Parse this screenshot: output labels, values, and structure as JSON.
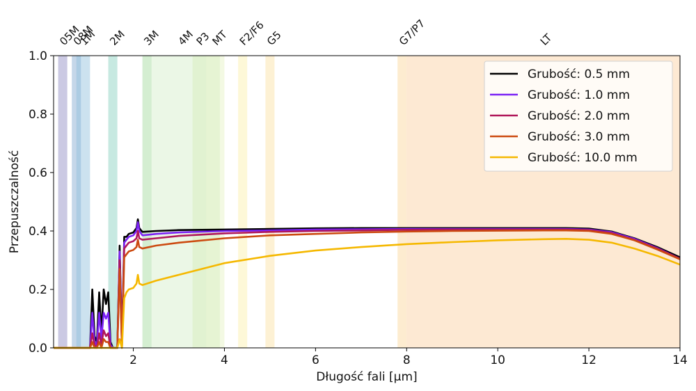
{
  "chart_data": {
    "type": "line",
    "title": "",
    "xlabel": "Długość fali [µm]",
    "ylabel": "Przepuszczalność",
    "xlim": [
      0.25,
      14
    ],
    "ylim": [
      0,
      1
    ],
    "xticks": [
      2,
      4,
      6,
      8,
      10,
      12,
      14
    ],
    "xtick_labels": [
      "2",
      "4",
      "6",
      "8",
      "10",
      "12",
      "14"
    ],
    "yticks": [
      0,
      0.2,
      0.4,
      0.6,
      0.8,
      1.0
    ],
    "ytick_labels": [
      "0.0",
      "0.2",
      "0.4",
      "0.6",
      "0.8",
      "1.0"
    ],
    "grid": false,
    "legend_position": "top-right",
    "bands": [
      {
        "label": "05M",
        "x": [
          0.35,
          0.55
        ],
        "color": "#8c87c0",
        "opacity": 0.45
      },
      {
        "label": "08M",
        "x": [
          0.65,
          0.85
        ],
        "color": "#7ea7cf",
        "opacity": 0.45
      },
      {
        "label": "1M",
        "x": [
          0.75,
          1.05
        ],
        "color": "#8fbedc",
        "opacity": 0.45
      },
      {
        "label": "2M",
        "x": [
          1.45,
          1.65
        ],
        "color": "#74c8b4",
        "opacity": 0.4
      },
      {
        "label": "3M",
        "x": [
          2.2,
          2.4
        ],
        "color": "#a8dcae",
        "opacity": 0.4
      },
      {
        "label": "4M",
        "x": [
          2.2,
          3.9
        ],
        "color": "#c6e8b8",
        "opacity": 0.35
      },
      {
        "label": "P3",
        "x": [
          3.3,
          3.6
        ],
        "color": "#cfe9a8",
        "opacity": 0.35
      },
      {
        "label": "MT",
        "x": [
          3.6,
          4.0
        ],
        "color": "#dcefb0",
        "opacity": 0.35
      },
      {
        "label": "F2/F6",
        "x": [
          4.3,
          4.5
        ],
        "color": "#fbf3b8",
        "opacity": 0.55
      },
      {
        "label": "G5",
        "x": [
          4.9,
          5.1
        ],
        "color": "#fbe6b0",
        "opacity": 0.55
      },
      {
        "label": "G7/P7",
        "x": [
          7.8,
          8.0
        ],
        "color": "#fbdcaa",
        "opacity": 0.55
      },
      {
        "label": "LT",
        "x": [
          8.0,
          14.0
        ],
        "color": "#fbd3a8",
        "opacity": 0.5
      }
    ],
    "x": [
      0.25,
      1.05,
      1.1,
      1.15,
      1.2,
      1.25,
      1.3,
      1.35,
      1.4,
      1.45,
      1.5,
      1.55,
      1.6,
      1.65,
      1.7,
      1.75,
      1.8,
      1.85,
      1.9,
      2.0,
      2.07,
      2.1,
      2.13,
      2.2,
      2.5,
      3,
      4,
      5,
      6,
      7,
      8,
      9,
      10,
      11,
      11.5,
      12,
      12.5,
      13,
      13.5,
      14
    ],
    "series": [
      {
        "name": "Grubość: 0.5 mm",
        "color": "#000000",
        "values": [
          0,
          0,
          0.2,
          0.04,
          0.02,
          0.19,
          0.05,
          0.2,
          0.15,
          0.19,
          0.02,
          0,
          0,
          0,
          0.35,
          0.02,
          0.38,
          0.38,
          0.39,
          0.395,
          0.41,
          0.44,
          0.41,
          0.397,
          0.4,
          0.403,
          0.405,
          0.407,
          0.409,
          0.41,
          0.41,
          0.41,
          0.41,
          0.41,
          0.41,
          0.408,
          0.398,
          0.375,
          0.345,
          0.31
        ]
      },
      {
        "name": "Grubość: 1.0 mm",
        "color": "#7b22f5",
        "values": [
          0,
          0,
          0.12,
          0.02,
          0.01,
          0.12,
          0.03,
          0.12,
          0.1,
          0.12,
          0.01,
          0,
          0,
          0,
          0.33,
          0.01,
          0.36,
          0.37,
          0.38,
          0.385,
          0.4,
          0.43,
          0.4,
          0.385,
          0.39,
          0.395,
          0.4,
          0.402,
          0.405,
          0.406,
          0.407,
          0.407,
          0.407,
          0.407,
          0.407,
          0.405,
          0.396,
          0.373,
          0.342,
          0.305
        ]
      },
      {
        "name": "Grubość: 2.0 mm",
        "color": "#b0175a",
        "values": [
          0,
          0,
          0.05,
          0.01,
          0,
          0.05,
          0.01,
          0.06,
          0.04,
          0.05,
          0,
          0,
          0,
          0,
          0.3,
          0,
          0.34,
          0.35,
          0.36,
          0.365,
          0.375,
          0.4,
          0.375,
          0.37,
          0.375,
          0.383,
          0.392,
          0.397,
          0.4,
          0.402,
          0.404,
          0.405,
          0.405,
          0.405,
          0.405,
          0.403,
          0.393,
          0.37,
          0.34,
          0.305
        ]
      },
      {
        "name": "Grubość: 3.0 mm",
        "color": "#cc4a10",
        "values": [
          0,
          0,
          0.02,
          0,
          0,
          0.02,
          0,
          0.03,
          0.02,
          0.02,
          0,
          0,
          0,
          0,
          0.27,
          0,
          0.31,
          0.32,
          0.33,
          0.335,
          0.345,
          0.37,
          0.345,
          0.34,
          0.35,
          0.36,
          0.375,
          0.385,
          0.39,
          0.395,
          0.398,
          0.4,
          0.401,
          0.402,
          0.402,
          0.4,
          0.39,
          0.368,
          0.337,
          0.303
        ]
      },
      {
        "name": "Grubość: 10.0 mm",
        "color": "#f5b800",
        "values": [
          0,
          0,
          0,
          0,
          0,
          0,
          0,
          0,
          0,
          0,
          0,
          0,
          0,
          0,
          0.03,
          0,
          0.17,
          0.19,
          0.2,
          0.205,
          0.22,
          0.25,
          0.22,
          0.215,
          0.23,
          0.25,
          0.29,
          0.315,
          0.333,
          0.345,
          0.355,
          0.362,
          0.368,
          0.372,
          0.373,
          0.37,
          0.36,
          0.34,
          0.315,
          0.285
        ]
      }
    ]
  }
}
